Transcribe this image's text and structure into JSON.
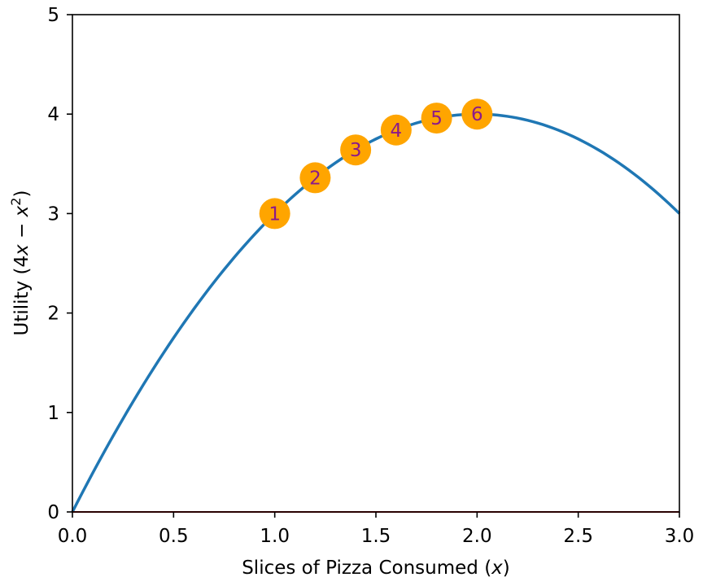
{
  "chart_data": {
    "type": "line",
    "xlabel_pre": "Slices of Pizza Consumed (",
    "xlabel_var": "x",
    "xlabel_post": ")",
    "ylabel_pre": "Utility (4",
    "ylabel_var": "x",
    "ylabel_mid": " − ",
    "ylabel_var2": "x",
    "ylabel_sup": "2",
    "ylabel_post": ")",
    "xlim": [
      0,
      3
    ],
    "ylim": [
      0,
      5
    ],
    "x_ticks": [
      "0.0",
      "0.5",
      "1.0",
      "1.5",
      "2.0",
      "2.5",
      "3.0"
    ],
    "x_tick_values": [
      0,
      0.5,
      1.0,
      1.5,
      2.0,
      2.5,
      3.0
    ],
    "y_ticks": [
      "0",
      "1",
      "2",
      "3",
      "4",
      "5"
    ],
    "y_tick_values": [
      0,
      1,
      2,
      3,
      4,
      5
    ],
    "series": [
      {
        "function": "4x - x^2",
        "x": [
          0,
          0.25,
          0.5,
          0.75,
          1.0,
          1.25,
          1.5,
          1.75,
          2.0,
          2.25,
          2.5,
          2.75,
          3.0
        ],
        "values": [
          0,
          0.9375,
          1.75,
          2.4375,
          3.0,
          3.4375,
          3.75,
          3.9375,
          4.0,
          3.9375,
          3.75,
          3.4375,
          3.0
        ],
        "color": "#1f77b4"
      }
    ],
    "markers": [
      {
        "label": "1",
        "x": 1.0,
        "y": 3.0
      },
      {
        "label": "2",
        "x": 1.2,
        "y": 3.36
      },
      {
        "label": "3",
        "x": 1.4,
        "y": 3.64
      },
      {
        "label": "4",
        "x": 1.6,
        "y": 3.84
      },
      {
        "label": "5",
        "x": 1.8,
        "y": 3.96
      },
      {
        "label": "6",
        "x": 2.0,
        "y": 4.0
      }
    ],
    "marker_color": "#ffa500",
    "marker_text_color": "#8b1a8b",
    "baseline": {
      "y": 0,
      "color": "#cc0000"
    },
    "grid": false,
    "legend": "none"
  }
}
